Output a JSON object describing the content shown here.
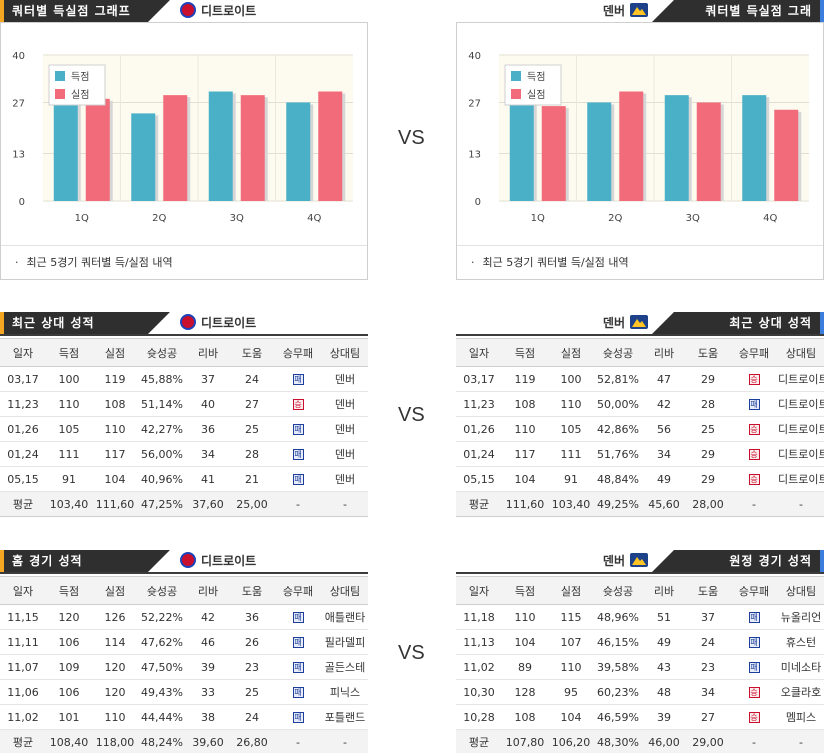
{
  "vs_label": "VS",
  "colors": {
    "scored": "#4ab0c8",
    "allowed": "#f26b7a",
    "loss": "#1d3f9a",
    "win": "#c8102e"
  },
  "icons": {
    "detroit_logo": "pistons-logo-icon",
    "denver_logo": "nuggets-logo-icon",
    "loss": "loss-badge-icon",
    "win": "win-badge-icon"
  },
  "sections": {
    "quarter_title": "쿼터별 득실점 그래프",
    "recent_title": "최근 상대 성적",
    "home_title": "홈 경기 성적",
    "away_title": "원정 경기 성적"
  },
  "teams": {
    "left": "디트로이트",
    "right": "덴버"
  },
  "quarter_note": "최근 5경기 쿼터별 득/실점 내역",
  "legend": {
    "scored": "득점",
    "allowed": "실점"
  },
  "chart_data": [
    {
      "type": "bar",
      "team": "디트로이트",
      "categories": [
        "1Q",
        "2Q",
        "3Q",
        "4Q"
      ],
      "series": [
        {
          "name": "득점",
          "values": [
            27,
            24,
            30,
            27
          ]
        },
        {
          "name": "실점",
          "values": [
            28,
            29,
            29,
            30
          ]
        }
      ],
      "yticks": [
        0,
        13,
        27,
        40
      ],
      "ylim": [
        0,
        40
      ],
      "legend": "top-left"
    },
    {
      "type": "bar",
      "team": "덴버",
      "categories": [
        "1Q",
        "2Q",
        "3Q",
        "4Q"
      ],
      "series": [
        {
          "name": "득점",
          "values": [
            27,
            27,
            29,
            29
          ]
        },
        {
          "name": "실점",
          "values": [
            26,
            30,
            27,
            25
          ]
        }
      ],
      "yticks": [
        0,
        13,
        27,
        40
      ],
      "ylim": [
        0,
        40
      ],
      "legend": "top-left"
    }
  ],
  "columns": [
    "일자",
    "득점",
    "실점",
    "슛성공",
    "리바",
    "도움",
    "승무패",
    "상대팀"
  ],
  "tables": {
    "recent_left": {
      "rows": [
        {
          "date": "03,17",
          "pts": "100",
          "opp": "119",
          "fg": "45,88%",
          "reb": "37",
          "ast": "24",
          "result": "패",
          "team": "덴버"
        },
        {
          "date": "11,23",
          "pts": "110",
          "opp": "108",
          "fg": "51,14%",
          "reb": "40",
          "ast": "27",
          "result": "승",
          "team": "덴버"
        },
        {
          "date": "01,26",
          "pts": "105",
          "opp": "110",
          "fg": "42,27%",
          "reb": "36",
          "ast": "25",
          "result": "패",
          "team": "덴버"
        },
        {
          "date": "01,24",
          "pts": "111",
          "opp": "117",
          "fg": "56,00%",
          "reb": "34",
          "ast": "28",
          "result": "패",
          "team": "덴버"
        },
        {
          "date": "05,15",
          "pts": "91",
          "opp": "104",
          "fg": "40,96%",
          "reb": "41",
          "ast": "21",
          "result": "패",
          "team": "덴버"
        }
      ],
      "avg": {
        "date": "평균",
        "pts": "103,40",
        "opp": "111,60",
        "fg": "47,25%",
        "reb": "37,60",
        "ast": "25,00",
        "result": "-",
        "team": "-"
      }
    },
    "recent_right": {
      "rows": [
        {
          "date": "03,17",
          "pts": "119",
          "opp": "100",
          "fg": "52,81%",
          "reb": "47",
          "ast": "29",
          "result": "승",
          "team": "디트로이트"
        },
        {
          "date": "11,23",
          "pts": "108",
          "opp": "110",
          "fg": "50,00%",
          "reb": "42",
          "ast": "28",
          "result": "패",
          "team": "디트로이트"
        },
        {
          "date": "01,26",
          "pts": "110",
          "opp": "105",
          "fg": "42,86%",
          "reb": "56",
          "ast": "25",
          "result": "승",
          "team": "디트로이트"
        },
        {
          "date": "01,24",
          "pts": "117",
          "opp": "111",
          "fg": "51,76%",
          "reb": "34",
          "ast": "29",
          "result": "승",
          "team": "디트로이트"
        },
        {
          "date": "05,15",
          "pts": "104",
          "opp": "91",
          "fg": "48,84%",
          "reb": "49",
          "ast": "29",
          "result": "승",
          "team": "디트로이트"
        }
      ],
      "avg": {
        "date": "평균",
        "pts": "111,60",
        "opp": "103,40",
        "fg": "49,25%",
        "reb": "45,60",
        "ast": "28,00",
        "result": "-",
        "team": "-"
      }
    },
    "home_left": {
      "rows": [
        {
          "date": "11,15",
          "pts": "120",
          "opp": "126",
          "fg": "52,22%",
          "reb": "42",
          "ast": "36",
          "result": "패",
          "team": "애틀랜타"
        },
        {
          "date": "11,11",
          "pts": "106",
          "opp": "114",
          "fg": "47,62%",
          "reb": "46",
          "ast": "26",
          "result": "패",
          "team": "필라델피"
        },
        {
          "date": "11,07",
          "pts": "109",
          "opp": "120",
          "fg": "47,50%",
          "reb": "39",
          "ast": "23",
          "result": "패",
          "team": "골든스테"
        },
        {
          "date": "11,06",
          "pts": "106",
          "opp": "120",
          "fg": "49,43%",
          "reb": "33",
          "ast": "25",
          "result": "패",
          "team": "피닉스"
        },
        {
          "date": "11,02",
          "pts": "101",
          "opp": "110",
          "fg": "44,44%",
          "reb": "38",
          "ast": "24",
          "result": "패",
          "team": "포틀랜드"
        }
      ],
      "avg": {
        "date": "평균",
        "pts": "108,40",
        "opp": "118,00",
        "fg": "48,24%",
        "reb": "39,60",
        "ast": "26,80",
        "result": "-",
        "team": "-"
      }
    },
    "away_right": {
      "rows": [
        {
          "date": "11,18",
          "pts": "110",
          "opp": "115",
          "fg": "48,96%",
          "reb": "51",
          "ast": "37",
          "result": "패",
          "team": "뉴올리언"
        },
        {
          "date": "11,13",
          "pts": "104",
          "opp": "107",
          "fg": "46,15%",
          "reb": "49",
          "ast": "24",
          "result": "패",
          "team": "휴스턴"
        },
        {
          "date": "11,02",
          "pts": "89",
          "opp": "110",
          "fg": "39,58%",
          "reb": "43",
          "ast": "23",
          "result": "패",
          "team": "미네소타"
        },
        {
          "date": "10,30",
          "pts": "128",
          "opp": "95",
          "fg": "60,23%",
          "reb": "48",
          "ast": "34",
          "result": "승",
          "team": "오클라호"
        },
        {
          "date": "10,28",
          "pts": "108",
          "opp": "104",
          "fg": "46,59%",
          "reb": "39",
          "ast": "27",
          "result": "승",
          "team": "멤피스"
        }
      ],
      "avg": {
        "date": "평균",
        "pts": "107,80",
        "opp": "106,20",
        "fg": "48,30%",
        "reb": "46,00",
        "ast": "29,00",
        "result": "-",
        "team": "-"
      }
    }
  }
}
